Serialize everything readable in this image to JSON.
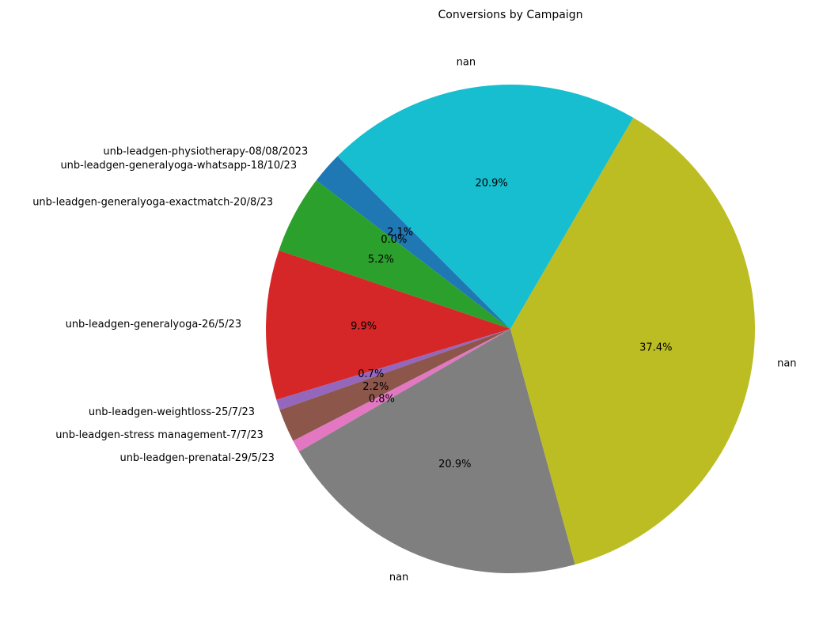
{
  "chart_data": {
    "type": "pie",
    "title": "Conversions by Campaign",
    "start_angle_deg": 135,
    "direction": "counterclockwise",
    "slices": [
      {
        "label": "unb-leadgen-physiotherapy-08/08/2023",
        "percent": 2.1,
        "percent_label": "2.1%",
        "color": "#1f77b4"
      },
      {
        "label": "unb-leadgen-generalyoga-whatsapp-18/10/23",
        "percent": 0.0,
        "percent_label": "0.0%",
        "color": "#ff7f0e"
      },
      {
        "label": "unb-leadgen-generalyoga-exactmatch-20/8/23",
        "percent": 5.2,
        "percent_label": "5.2%",
        "color": "#2ca02c"
      },
      {
        "label": "unb-leadgen-generalyoga-26/5/23",
        "percent": 9.9,
        "percent_label": "9.9%",
        "color": "#d62728"
      },
      {
        "label": "unb-leadgen-weightloss-25/7/23",
        "percent": 0.7,
        "percent_label": "0.7%",
        "color": "#9467bd"
      },
      {
        "label": "unb-leadgen-stress management-7/7/23",
        "percent": 2.2,
        "percent_label": "2.2%",
        "color": "#8c564b"
      },
      {
        "label": "unb-leadgen-prenatal-29/5/23",
        "percent": 0.8,
        "percent_label": "0.8%",
        "color": "#e377c2"
      },
      {
        "label": "nan",
        "percent": 20.9,
        "percent_label": "20.9%",
        "color": "#7f7f7f"
      },
      {
        "label": "nan",
        "percent": 37.4,
        "percent_label": "37.4%",
        "color": "#bcbd22"
      },
      {
        "label": "nan",
        "percent": 20.9,
        "percent_label": "20.9%",
        "color": "#17becf"
      }
    ]
  }
}
